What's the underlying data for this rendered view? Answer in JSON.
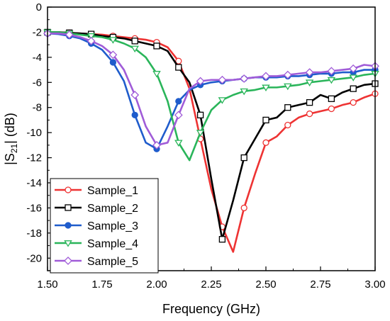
{
  "chart_data": {
    "type": "line",
    "title": "",
    "xlabel": "Frequency (GHz)",
    "ylabel": {
      "prefix": "|S",
      "sub": "21",
      "suffix": "| (dB)"
    },
    "xlim": [
      1.5,
      3.0
    ],
    "ylim": [
      -21,
      0
    ],
    "x_ticks": [
      1.5,
      1.75,
      2.0,
      2.25,
      2.5,
      2.75,
      3.0
    ],
    "x_tick_labels": [
      "1.50",
      "1.75",
      "2.00",
      "2.25",
      "2.50",
      "2.75",
      "3.00"
    ],
    "y_ticks": [
      0,
      -2,
      -4,
      -6,
      -8,
      -10,
      -12,
      -14,
      -16,
      -18,
      -20
    ],
    "y_tick_labels": [
      "0",
      "-2",
      "-4",
      "-6",
      "-8",
      "-10",
      "-12",
      "-14",
      "-16",
      "-18",
      "-20"
    ],
    "grid": false,
    "legend": {
      "placement": "bottom-left"
    },
    "series": [
      {
        "name": "Sample_1",
        "color": "#ee3333",
        "marker": "circle-open",
        "x": [
          1.5,
          1.55,
          1.6,
          1.65,
          1.7,
          1.75,
          1.8,
          1.85,
          1.9,
          1.95,
          2.0,
          2.05,
          2.1,
          2.15,
          2.2,
          2.25,
          2.3,
          2.35,
          2.4,
          2.45,
          2.5,
          2.55,
          2.6,
          2.65,
          2.7,
          2.75,
          2.8,
          2.85,
          2.9,
          2.95,
          3.0
        ],
        "y": [
          -2.0,
          -2.0,
          -2.05,
          -2.1,
          -2.15,
          -2.2,
          -2.3,
          -2.4,
          -2.5,
          -2.6,
          -2.8,
          -3.2,
          -4.3,
          -6.5,
          -10.5,
          -14.5,
          -17.5,
          -19.5,
          -16.0,
          -13.3,
          -10.8,
          -10.3,
          -9.4,
          -8.8,
          -8.5,
          -8.3,
          -8.1,
          -7.8,
          -7.6,
          -7.2,
          -6.9
        ]
      },
      {
        "name": "Sample_2",
        "color": "#000000",
        "marker": "square-open",
        "x": [
          1.5,
          1.55,
          1.6,
          1.65,
          1.7,
          1.75,
          1.8,
          1.85,
          1.9,
          1.95,
          2.0,
          2.05,
          2.1,
          2.15,
          2.2,
          2.25,
          2.3,
          2.35,
          2.4,
          2.45,
          2.5,
          2.55,
          2.6,
          2.65,
          2.7,
          2.75,
          2.8,
          2.85,
          2.9,
          2.95,
          3.0
        ],
        "y": [
          -2.0,
          -2.0,
          -2.05,
          -2.1,
          -2.15,
          -2.3,
          -2.4,
          -2.5,
          -2.7,
          -2.9,
          -3.1,
          -3.5,
          -4.8,
          -6.0,
          -8.6,
          -13.7,
          -18.5,
          -15.4,
          -12.0,
          -10.5,
          -9.0,
          -8.8,
          -8.0,
          -7.8,
          -7.6,
          -7.0,
          -7.3,
          -6.8,
          -6.5,
          -6.2,
          -6.1
        ]
      },
      {
        "name": "Sample_3",
        "color": "#1f5ccc",
        "marker": "circle-filled",
        "x": [
          1.5,
          1.55,
          1.6,
          1.65,
          1.7,
          1.75,
          1.8,
          1.85,
          1.9,
          1.95,
          2.0,
          2.05,
          2.1,
          2.15,
          2.2,
          2.25,
          2.3,
          2.35,
          2.4,
          2.45,
          2.5,
          2.55,
          2.6,
          2.65,
          2.7,
          2.75,
          2.8,
          2.85,
          2.9,
          2.95,
          3.0
        ],
        "y": [
          -2.1,
          -2.15,
          -2.3,
          -2.5,
          -2.9,
          -3.4,
          -4.4,
          -5.9,
          -8.6,
          -10.8,
          -11.3,
          -9.5,
          -7.5,
          -6.6,
          -6.2,
          -6.0,
          -5.9,
          -5.8,
          -5.7,
          -5.6,
          -5.6,
          -5.6,
          -5.5,
          -5.5,
          -5.4,
          -5.3,
          -5.3,
          -5.2,
          -5.2,
          -5.0,
          -5.0
        ]
      },
      {
        "name": "Sample_4",
        "color": "#2ab55a",
        "marker": "triangle-down-open",
        "x": [
          1.5,
          1.55,
          1.6,
          1.65,
          1.7,
          1.75,
          1.8,
          1.85,
          1.9,
          1.95,
          2.0,
          2.05,
          2.1,
          2.15,
          2.2,
          2.25,
          2.3,
          2.35,
          2.4,
          2.45,
          2.5,
          2.55,
          2.6,
          2.65,
          2.7,
          2.75,
          2.8,
          2.85,
          2.9,
          2.95,
          3.0
        ],
        "y": [
          -2.0,
          -2.0,
          -2.1,
          -2.2,
          -2.3,
          -2.4,
          -2.6,
          -2.9,
          -3.3,
          -4.0,
          -5.3,
          -7.5,
          -10.8,
          -12.2,
          -10.0,
          -8.2,
          -7.4,
          -7.0,
          -6.7,
          -6.6,
          -6.4,
          -6.4,
          -6.3,
          -6.2,
          -6.0,
          -5.9,
          -5.8,
          -5.7,
          -5.6,
          -5.4,
          -5.3
        ]
      },
      {
        "name": "Sample_5",
        "color": "#a05cd8",
        "marker": "diamond-open",
        "x": [
          1.5,
          1.55,
          1.6,
          1.65,
          1.7,
          1.75,
          1.8,
          1.85,
          1.9,
          1.95,
          2.0,
          2.05,
          2.1,
          2.15,
          2.2,
          2.25,
          2.3,
          2.35,
          2.4,
          2.45,
          2.5,
          2.55,
          2.6,
          2.65,
          2.7,
          2.75,
          2.8,
          2.85,
          2.9,
          2.95,
          3.0
        ],
        "y": [
          -2.1,
          -2.1,
          -2.2,
          -2.4,
          -2.7,
          -3.1,
          -3.8,
          -5.0,
          -7.0,
          -9.5,
          -11.0,
          -10.8,
          -8.6,
          -6.5,
          -5.9,
          -5.8,
          -5.8,
          -5.8,
          -5.7,
          -5.6,
          -5.5,
          -5.5,
          -5.4,
          -5.3,
          -5.2,
          -5.2,
          -5.1,
          -5.0,
          -4.9,
          -4.6,
          -4.7
        ]
      }
    ]
  }
}
